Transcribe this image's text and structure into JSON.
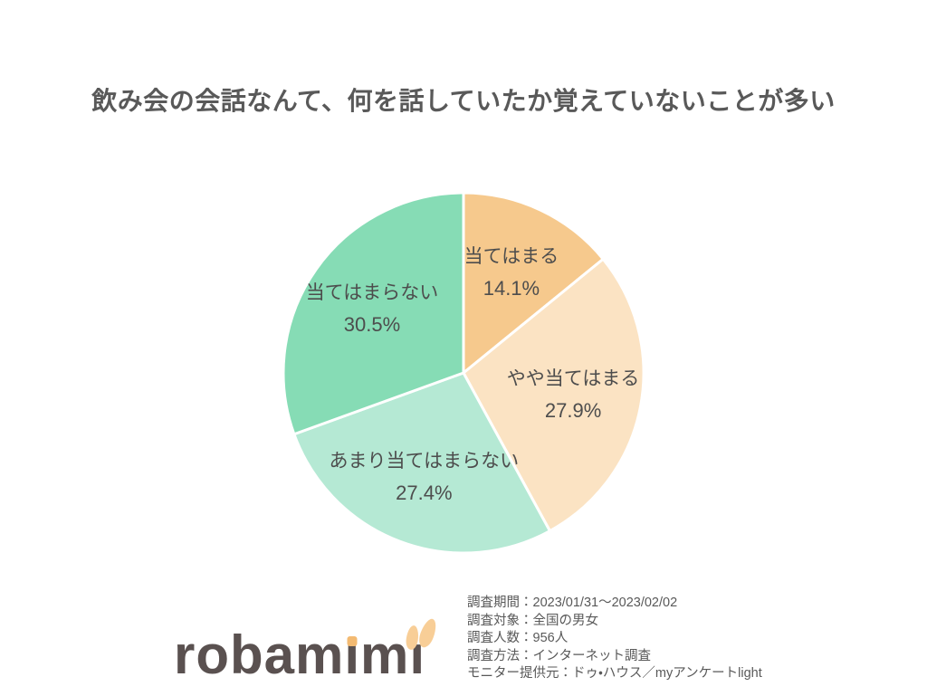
{
  "title": "飲み会の会話なんて、何を話していたか覚えていないことが多い",
  "chart_data": {
    "type": "pie",
    "title": "飲み会の会話なんて、何を話していたか覚えていないことが多い",
    "labels": [
      "当てはまる",
      "やや当てはまる",
      "あまり当てはまらない",
      "当てはまらない"
    ],
    "values": [
      14.1,
      27.9,
      27.4,
      30.5
    ],
    "display_percents": [
      "14.1%",
      "27.9%",
      "27.4%",
      "30.5%"
    ],
    "colors": [
      "#f6c98d",
      "#fbe3c3",
      "#b5e9d4",
      "#86dcb5"
    ],
    "start_angle_deg": 0,
    "direction": "clockwise",
    "separator_color": "#ffffff",
    "label_text_color": "#4d4d4d",
    "legend": "none"
  },
  "survey_info": {
    "lines": [
      "調査期間：2023/01/31～2023/02/02",
      "調査対象：全国の男女",
      "調査人数：956人",
      "調査方法：インターネット調査",
      "モニター提供元：ドゥ・ハウス／myアンケートlight"
    ]
  },
  "logo": {
    "text": "robamimi",
    "parts": {
      "p1": "robam",
      "i1": "ı",
      "p2": "m",
      "i2": "ı"
    },
    "text_color": "#5a5150",
    "accent_color": "#f3ba72",
    "ear_color": "#f8ce97"
  }
}
